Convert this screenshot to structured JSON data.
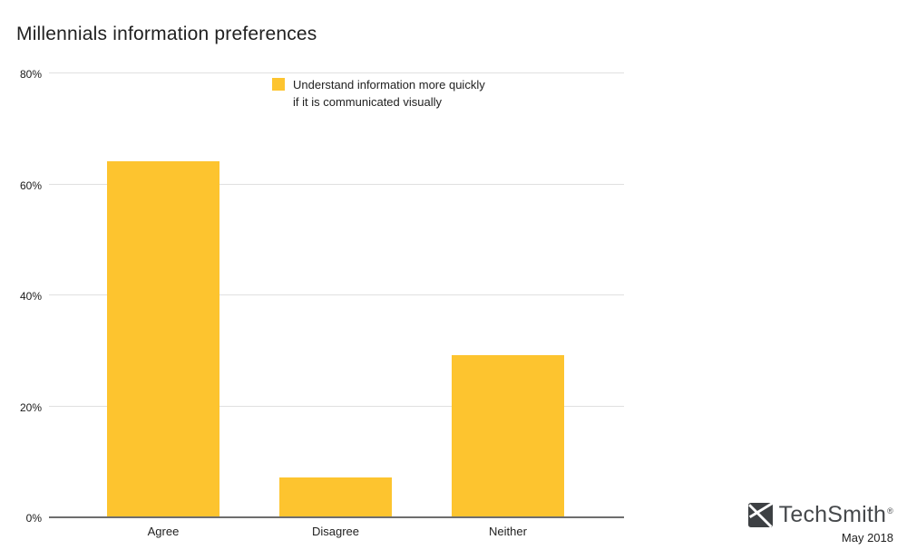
{
  "page": {
    "background": "#ffffff"
  },
  "header": {
    "title": "Millennials information preferences"
  },
  "legend": {
    "swatch_color": "#fdc42f",
    "line1": "Understand information more quickly",
    "line2": "if it is communicated visually"
  },
  "chart_data": {
    "type": "bar",
    "title": "Millennials information preferences",
    "series_name": "Understand information more quickly if it is communicated visually",
    "categories": [
      "Agree",
      "Disagree",
      "Neither"
    ],
    "values": [
      64,
      7,
      29
    ],
    "unit": "%",
    "ylim": [
      0,
      80
    ],
    "yticks": [
      0,
      20,
      40,
      60,
      80
    ],
    "ytick_labels": [
      "0%",
      "20%",
      "40%",
      "60%",
      "80%"
    ],
    "xlabel": "",
    "ylabel": "",
    "grid": true,
    "legend_position": "top-center",
    "bar_color": "#fdc42f",
    "gridline_color": "#e0e0e0",
    "axis_line_color": "#6e6e6e"
  },
  "footer": {
    "brand": "TechSmith",
    "registered_mark": "®",
    "date": "May 2018",
    "logo_color": "#3d4043"
  }
}
